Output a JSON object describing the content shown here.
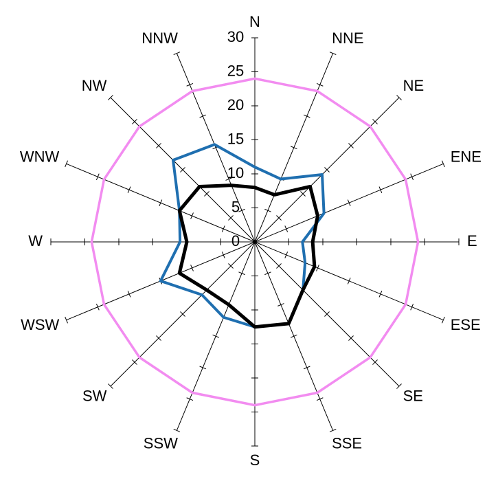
{
  "chart_data": {
    "type": "radar",
    "categories": [
      "N",
      "NNE",
      "NE",
      "ENE",
      "E",
      "ESE",
      "SE",
      "SSE",
      "S",
      "SSW",
      "SW",
      "WSW",
      "W",
      "WNW",
      "NW",
      "NNW"
    ],
    "series": [
      {
        "color": "#f28cf0",
        "values": [
          24,
          24,
          24,
          24,
          24,
          24,
          24,
          24,
          24,
          24,
          24,
          24,
          24,
          24,
          24,
          24
        ]
      },
      {
        "color": "#1f6fb0",
        "values": [
          11,
          10,
          14,
          11,
          7,
          8,
          10,
          13,
          12.5,
          12,
          11,
          15,
          11,
          12,
          17,
          15.5
        ]
      },
      {
        "color": "#000000",
        "values": [
          8,
          7.5,
          11.5,
          10,
          8.5,
          9.5,
          10,
          13,
          12.5,
          10,
          10,
          12,
          10,
          12,
          11.5,
          9
        ]
      }
    ],
    "ylim": [
      0,
      30
    ],
    "yticks": [
      0,
      5,
      10,
      15,
      20,
      25,
      30
    ],
    "grid": true
  }
}
